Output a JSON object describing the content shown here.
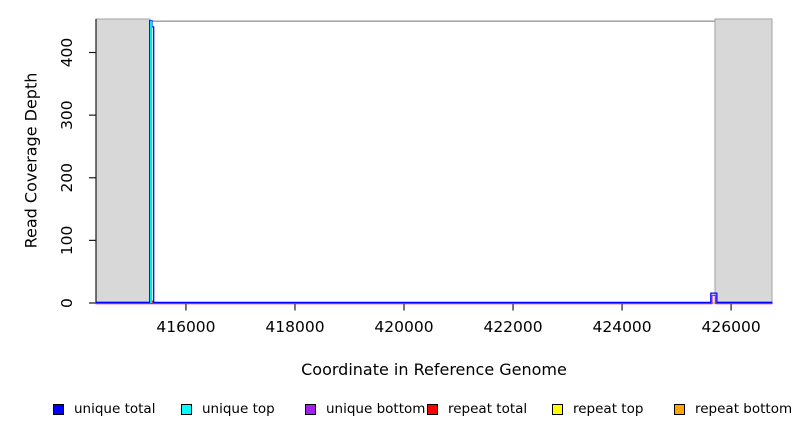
{
  "chart_data": {
    "type": "line",
    "title": "",
    "xlabel": "Coordinate in Reference Genome",
    "ylabel": "Read Coverage Depth",
    "xlim": [
      414350,
      426750
    ],
    "ylim": [
      0,
      450
    ],
    "x_ticks": [
      "416000",
      "418000",
      "420000",
      "422000",
      "424000",
      "426000"
    ],
    "x_tick_values": [
      416000,
      418000,
      420000,
      422000,
      424000,
      426000
    ],
    "y_ticks": [
      "0",
      "100",
      "200",
      "300",
      "400"
    ],
    "y_tick_values": [
      0,
      100,
      200,
      300,
      400
    ],
    "grid": "off",
    "clip_line_y": 450,
    "shaded_regions": [
      {
        "name": "gray-region-left",
        "x0": 414350,
        "x1": 415340
      },
      {
        "name": "gray-region-right",
        "x0": 425704,
        "x1": 426750
      }
    ],
    "series": [
      {
        "name": "unique total",
        "color": "#0000FF",
        "points": [
          [
            414350,
            0
          ],
          [
            415335,
            0
          ],
          [
            415335,
            450
          ],
          [
            415378,
            450
          ],
          [
            415378,
            440
          ],
          [
            415408,
            440
          ],
          [
            415408,
            0
          ],
          [
            425628,
            0
          ],
          [
            425628,
            15
          ],
          [
            425740,
            15
          ],
          [
            425740,
            0
          ],
          [
            426750,
            0
          ]
        ]
      },
      {
        "name": "unique top",
        "color": "#00E5EE",
        "points": [
          [
            415352,
            0
          ],
          [
            415352,
            450
          ],
          [
            415370,
            450
          ],
          [
            415370,
            0
          ]
        ]
      },
      {
        "name": "unique bottom",
        "color": "#A020F0",
        "points": [
          [
            414350,
            0
          ],
          [
            425650,
            0
          ],
          [
            425650,
            13
          ],
          [
            425716,
            13
          ],
          [
            425716,
            0
          ],
          [
            426750,
            0
          ]
        ]
      },
      {
        "name": "repeat total",
        "color": "#EE0000",
        "points": [
          [
            415368,
            0
          ],
          [
            415368,
            3
          ],
          [
            415392,
            3
          ],
          [
            415392,
            0
          ]
        ]
      },
      {
        "name": "repeat top",
        "color": "#FFFF00",
        "points": [
          [
            414350,
            0
          ],
          [
            426750,
            0
          ]
        ]
      },
      {
        "name": "repeat bottom",
        "color": "#FFA500",
        "points": [
          [
            414350,
            0
          ],
          [
            426750,
            0
          ]
        ]
      }
    ],
    "legend": [
      {
        "label": "unique total",
        "color": "#0000FF"
      },
      {
        "label": "unique top",
        "color": "#00FFFF"
      },
      {
        "label": "unique bottom",
        "color": "#A020F0"
      },
      {
        "label": "repeat total",
        "color": "#FF0000"
      },
      {
        "label": "repeat top",
        "color": "#FFFF00"
      },
      {
        "label": "repeat bottom",
        "color": "#FFA500"
      }
    ],
    "legend_position": "bottom",
    "colors": {
      "shaded_region_fill": "#D8D8D8",
      "shaded_region_border": "#A2A2A2",
      "clip_line": "#999999",
      "axis": "#1A1A1A",
      "text": "#000000"
    }
  }
}
